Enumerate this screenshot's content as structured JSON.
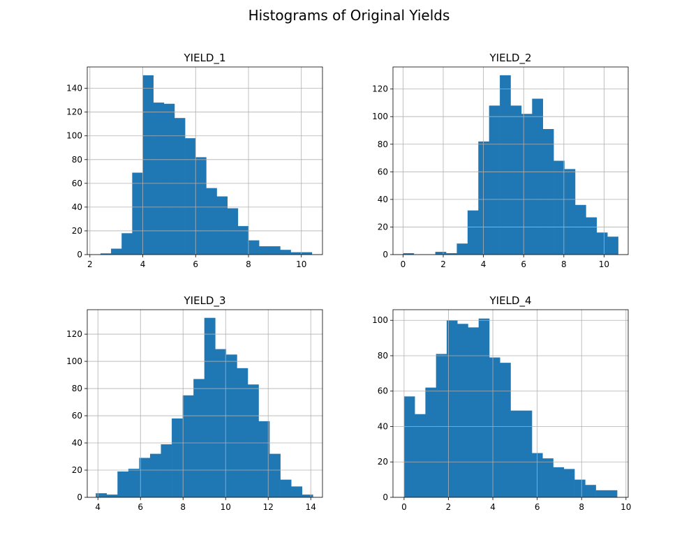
{
  "figure_title": "Histograms of Original Yields",
  "colors": {
    "bar": "#1f77b4",
    "grid": "#b0b0b0",
    "axis": "#000000"
  },
  "chart_data": [
    {
      "type": "bar",
      "title": "YIELD_1",
      "xlim": [
        1.9,
        10.8
      ],
      "ylim": [
        0,
        158
      ],
      "xticks": [
        2,
        4,
        6,
        8,
        10
      ],
      "yticks": [
        0,
        20,
        40,
        60,
        80,
        100,
        120,
        140
      ],
      "grid": true,
      "bin_start": 2.4,
      "bin_width": 0.4,
      "values": [
        1,
        5,
        18,
        69,
        151,
        128,
        127,
        115,
        98,
        82,
        56,
        49,
        39,
        24,
        12,
        7,
        7,
        4,
        2,
        2
      ]
    },
    {
      "type": "bar",
      "title": "YIELD_2",
      "xlim": [
        -0.5,
        11.2
      ],
      "ylim": [
        0,
        136
      ],
      "xticks": [
        0,
        2,
        4,
        6,
        8,
        10
      ],
      "yticks": [
        0,
        20,
        40,
        60,
        80,
        100,
        120
      ],
      "grid": true,
      "bin_start": 0,
      "bin_width": 0.535,
      "values": [
        1,
        0,
        0,
        2,
        1,
        8,
        32,
        82,
        108,
        130,
        108,
        102,
        113,
        91,
        68,
        62,
        36,
        27,
        16,
        13
      ]
    },
    {
      "type": "bar",
      "title": "YIELD_3",
      "xlim": [
        3.5,
        14.55
      ],
      "ylim": [
        0,
        138
      ],
      "xticks": [
        4,
        6,
        8,
        10,
        12,
        14
      ],
      "yticks": [
        0,
        20,
        40,
        60,
        80,
        100,
        120
      ],
      "grid": true,
      "bin_start": 3.9,
      "bin_width": 0.51,
      "values": [
        3,
        2,
        19,
        21,
        29,
        32,
        39,
        58,
        75,
        87,
        132,
        109,
        105,
        95,
        83,
        56,
        32,
        13,
        8,
        2
      ]
    },
    {
      "type": "bar",
      "title": "YIELD_4",
      "xlim": [
        -0.5,
        10.1
      ],
      "ylim": [
        0,
        106
      ],
      "xticks": [
        0,
        2,
        4,
        6,
        8,
        10
      ],
      "yticks": [
        0,
        20,
        40,
        60,
        80,
        100
      ],
      "grid": true,
      "bin_start": 0,
      "bin_width": 0.48,
      "values": [
        57,
        47,
        62,
        81,
        100,
        98,
        96,
        101,
        79,
        76,
        49,
        49,
        25,
        22,
        17,
        16,
        10,
        7,
        4,
        4
      ]
    }
  ]
}
